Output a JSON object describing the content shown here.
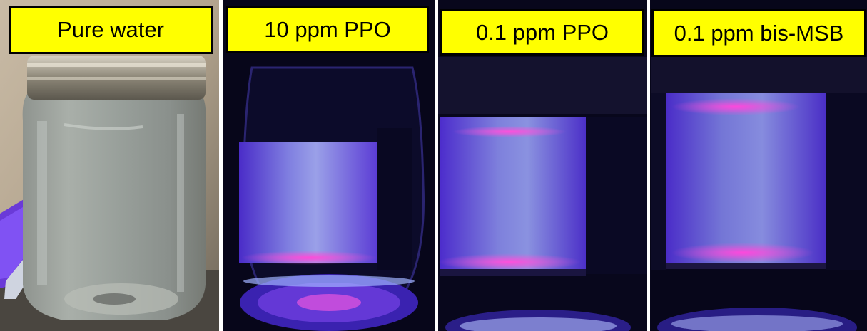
{
  "panels": [
    {
      "label": "Pure water"
    },
    {
      "label": "10 ppm PPO"
    },
    {
      "label": "0.1 ppm PPO"
    },
    {
      "label": "0.1 ppm bis-MSB"
    }
  ]
}
